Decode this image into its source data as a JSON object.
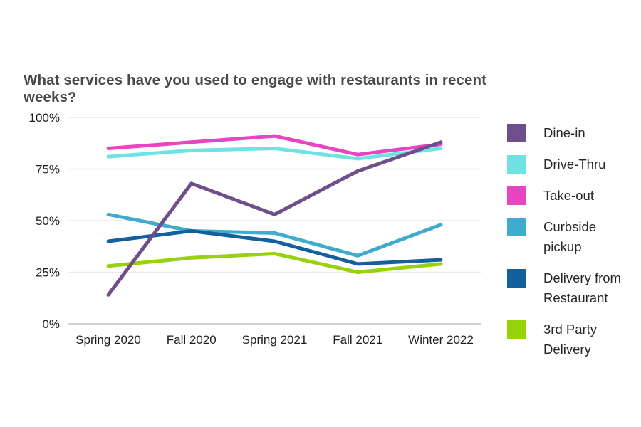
{
  "title": "What services have you used to engage with restaurants in recent weeks?",
  "chart_data": {
    "type": "line",
    "title": "What services have you used to engage with restaurants in recent weeks?",
    "categories": [
      "Spring 2020",
      "Fall 2020",
      "Spring 2021",
      "Fall 2021",
      "Winter 2022"
    ],
    "series": [
      {
        "name": "Dine-in",
        "color": "#6f4e8c",
        "values": [
          14,
          68,
          53,
          74,
          88
        ]
      },
      {
        "name": "Drive-Thru",
        "color": "#6fe3e4",
        "values": [
          81,
          84,
          85,
          80,
          85
        ]
      },
      {
        "name": "Take-out",
        "color": "#e845c2",
        "values": [
          85,
          88,
          91,
          82,
          87
        ]
      },
      {
        "name": "Curbside pickup",
        "color": "#3fabcf",
        "values": [
          53,
          45,
          44,
          33,
          48
        ]
      },
      {
        "name": "Delivery from Restaurant",
        "color": "#13609e",
        "values": [
          40,
          45,
          40,
          29,
          31
        ]
      },
      {
        "name": "3rd Party Delivery",
        "color": "#98d20d",
        "values": [
          28,
          32,
          34,
          25,
          29
        ]
      }
    ],
    "xlabel": "",
    "ylabel": "",
    "ylim": [
      0,
      100
    ],
    "yticks": [
      0,
      25,
      50,
      75,
      100
    ],
    "ytick_labels": [
      "0%",
      "25%",
      "50%",
      "75%",
      "100%"
    ],
    "grid": "horizontal",
    "legend_position": "right",
    "colors": {
      "gridline": "#eaeaea",
      "baseline": "#d2d2d2",
      "title_text": "#48494b",
      "tick_text": "#1e1e1e",
      "legend_text": "#262626",
      "background": "#ffffff"
    }
  }
}
